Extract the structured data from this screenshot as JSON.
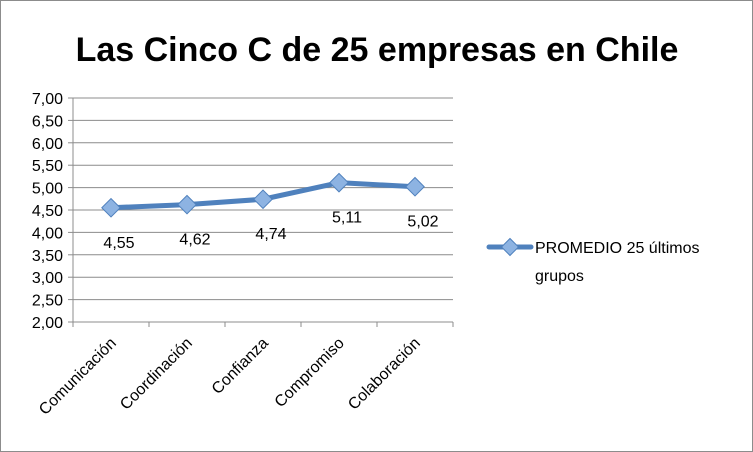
{
  "chart_data": {
    "type": "line",
    "title": "Las Cinco C de 25 empresas en Chile",
    "categories": [
      "Comunicación",
      "Coordinación",
      "Confianza",
      "Compromiso",
      "Colaboración"
    ],
    "series": [
      {
        "name": "PROMEDIO 25 últimos grupos",
        "values": [
          4.55,
          4.62,
          4.74,
          5.11,
          5.02
        ],
        "data_labels": [
          "4,55",
          "4,62",
          "4,74",
          "5,11",
          "5,02"
        ],
        "color": "#4f81bd",
        "marker_color": "#8db3e2"
      }
    ],
    "ylim": [
      2.0,
      7.0
    ],
    "yticks": [
      2.0,
      2.5,
      3.0,
      3.5,
      4.0,
      4.5,
      5.0,
      5.5,
      6.0,
      6.5,
      7.0
    ],
    "ytick_labels": [
      "2,00",
      "2,50",
      "3,00",
      "3,50",
      "4,00",
      "4,50",
      "5,00",
      "5,50",
      "6,00",
      "6,50",
      "7,00"
    ],
    "grid": true,
    "legend_position": "right",
    "legend_lines": [
      "PROMEDIO 25 últimos",
      "grupos"
    ]
  }
}
